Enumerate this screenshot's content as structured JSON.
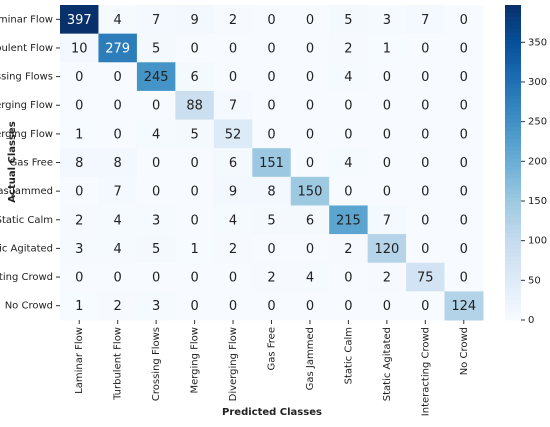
{
  "chart_data": {
    "type": "heatmap",
    "x_label": "Predicted Classes",
    "y_label": "Actual Classes",
    "x_categories": [
      "Laminar Flow",
      "Turbulent Flow",
      "Crossing Flows",
      "Merging Flow",
      "Diverging Flow",
      "Gas Free",
      "Gas Jammed",
      "Static Calm",
      "Static Agitated",
      "Interacting Crowd",
      "No Crowd"
    ],
    "y_categories": [
      "Laminar Flow",
      "Turbulent Flow",
      "Crossing Flows",
      "Merging Flow",
      "Diverging Flow",
      "Gas Free",
      "Gas Jammed",
      "Static Calm",
      "Static Agitated",
      "Interacting Crowd",
      "No Crowd"
    ],
    "z": [
      [
        397,
        4,
        7,
        9,
        2,
        0,
        0,
        5,
        3,
        7,
        0
      ],
      [
        10,
        279,
        5,
        0,
        0,
        0,
        0,
        2,
        1,
        0,
        0
      ],
      [
        0,
        0,
        245,
        6,
        0,
        0,
        0,
        4,
        0,
        0,
        0
      ],
      [
        0,
        0,
        0,
        88,
        7,
        0,
        0,
        0,
        0,
        0,
        0
      ],
      [
        1,
        0,
        4,
        5,
        52,
        0,
        0,
        0,
        0,
        0,
        0
      ],
      [
        8,
        8,
        0,
        0,
        6,
        151,
        0,
        4,
        0,
        0,
        0
      ],
      [
        0,
        7,
        0,
        0,
        9,
        8,
        150,
        0,
        0,
        0,
        0
      ],
      [
        2,
        4,
        3,
        0,
        4,
        5,
        6,
        215,
        7,
        0,
        0
      ],
      [
        3,
        4,
        5,
        1,
        2,
        0,
        0,
        2,
        120,
        0,
        0
      ],
      [
        0,
        0,
        0,
        0,
        0,
        2,
        4,
        0,
        2,
        75,
        0
      ],
      [
        1,
        2,
        3,
        0,
        0,
        0,
        0,
        0,
        0,
        0,
        124
      ]
    ],
    "zlim": [
      0,
      397
    ],
    "zticks": [
      0,
      50,
      100,
      150,
      200,
      250,
      300,
      350
    ],
    "colormap": [
      "#f7fbff",
      "#deebf7",
      "#c6dbef",
      "#9ecae1",
      "#6baed6",
      "#4292c6",
      "#2171b5",
      "#08519c",
      "#08306b"
    ]
  }
}
